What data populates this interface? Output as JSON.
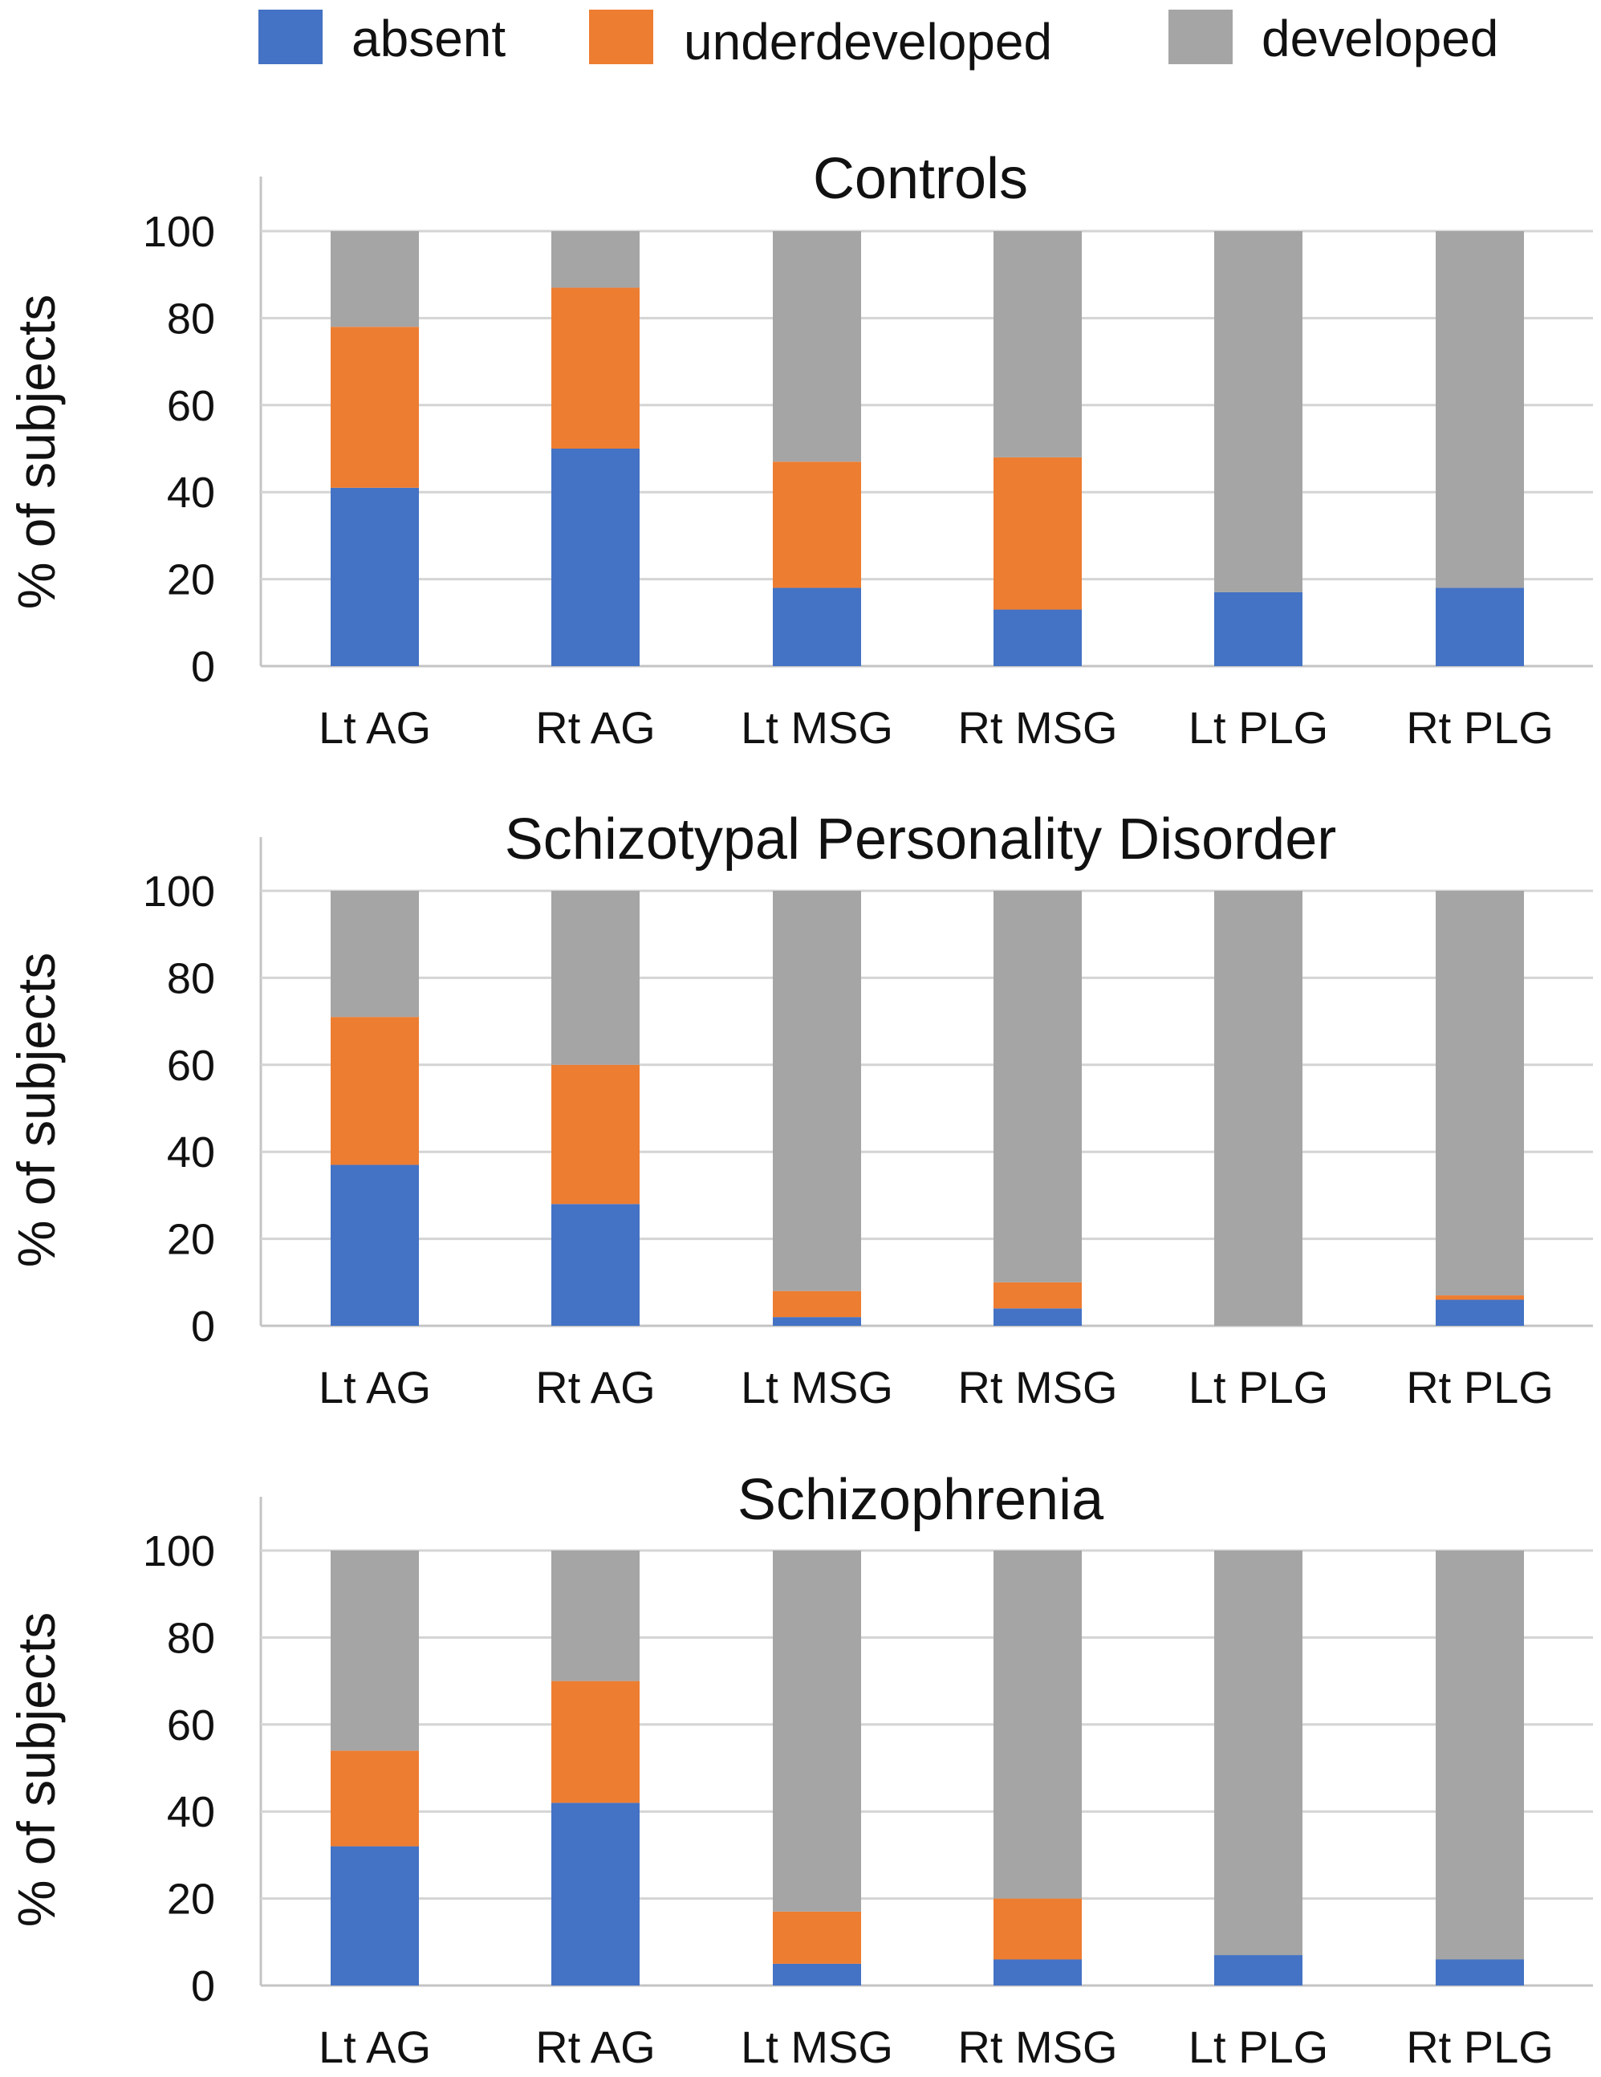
{
  "chart_data": {
    "type": "bar",
    "stacked": true,
    "legend_position": "top",
    "series_style": [
      {
        "name": "absent",
        "color": "#4472c4"
      },
      {
        "name": "underdeveloped",
        "color": "#ed7d31"
      },
      {
        "name": "developed",
        "color": "#a5a5a5"
      }
    ],
    "panels": [
      {
        "title": "Controls",
        "xlabel": "",
        "ylabel": "% of subjects",
        "ylim": [
          0,
          100
        ],
        "yticks": [
          0,
          20,
          40,
          60,
          80,
          100
        ],
        "grid": true,
        "categories": [
          "Lt AG",
          "Rt AG",
          "Lt MSG",
          "Rt MSG",
          "Lt PLG",
          "Rt PLG"
        ],
        "series": [
          {
            "name": "absent",
            "values": [
              41,
              50,
              18,
              13,
              17,
              18
            ]
          },
          {
            "name": "underdeveloped",
            "values": [
              37,
              37,
              29,
              35,
              0,
              0
            ]
          },
          {
            "name": "developed",
            "values": [
              22,
              13,
              53,
              52,
              83,
              82
            ]
          }
        ]
      },
      {
        "title": "Schizotypal Personality Disorder",
        "xlabel": "",
        "ylabel": "% of subjects",
        "ylim": [
          0,
          100
        ],
        "yticks": [
          0,
          20,
          40,
          60,
          80,
          100
        ],
        "grid": true,
        "categories": [
          "Lt AG",
          "Rt AG",
          "Lt MSG",
          "Rt MSG",
          "Lt PLG",
          "Rt PLG"
        ],
        "series": [
          {
            "name": "absent",
            "values": [
              37,
              28,
              2,
              4,
              0,
              6
            ]
          },
          {
            "name": "underdeveloped",
            "values": [
              34,
              32,
              6,
              6,
              0,
              1
            ]
          },
          {
            "name": "developed",
            "values": [
              29,
              40,
              92,
              90,
              100,
              93
            ]
          }
        ]
      },
      {
        "title": "Schizophrenia",
        "xlabel": "",
        "ylabel": "% of subjects",
        "ylim": [
          0,
          100
        ],
        "yticks": [
          0,
          20,
          40,
          60,
          80,
          100
        ],
        "grid": true,
        "categories": [
          "Lt AG",
          "Rt AG",
          "Lt MSG",
          "Rt MSG",
          "Lt PLG",
          "Rt PLG"
        ],
        "series": [
          {
            "name": "absent",
            "values": [
              32,
              42,
              5,
              6,
              7,
              6
            ]
          },
          {
            "name": "underdeveloped",
            "values": [
              22,
              28,
              12,
              14,
              0,
              0
            ]
          },
          {
            "name": "developed",
            "values": [
              46,
              30,
              83,
              80,
              93,
              94
            ]
          }
        ]
      }
    ]
  }
}
